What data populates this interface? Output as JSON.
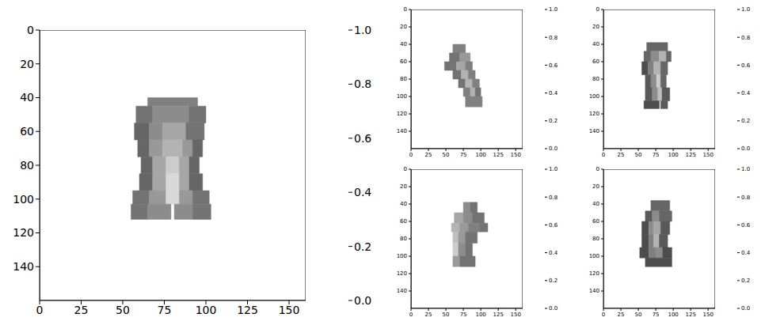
{
  "chart_data": [
    {
      "type": "heatmap",
      "xlim": [
        0,
        160
      ],
      "ylim": [
        0,
        160
      ],
      "xticks": [
        0,
        25,
        50,
        75,
        100,
        125,
        150
      ],
      "yticks": [
        0,
        20,
        40,
        60,
        80,
        100,
        120,
        140
      ],
      "colorbar_range": [
        0,
        1
      ],
      "colorbar_ticks": [
        {
          "value": 0,
          "label": "0.0"
        },
        0.2,
        0.4,
        0.6,
        0.8,
        {
          "value": 1,
          "label": "1.0"
        }
      ],
      "cells": [
        [
          65,
          95,
          40,
          45,
          0.5
        ],
        [
          58,
          68,
          45,
          55,
          0.55
        ],
        [
          68,
          90,
          45,
          55,
          0.45
        ],
        [
          90,
          100,
          45,
          55,
          0.55
        ],
        [
          57,
          66,
          55,
          65,
          0.6
        ],
        [
          66,
          74,
          55,
          65,
          0.45
        ],
        [
          74,
          88,
          55,
          65,
          0.35
        ],
        [
          88,
          99,
          55,
          65,
          0.55
        ],
        [
          59,
          66,
          65,
          75,
          0.6
        ],
        [
          66,
          74,
          65,
          75,
          0.4
        ],
        [
          74,
          86,
          65,
          75,
          0.3
        ],
        [
          86,
          92,
          65,
          75,
          0.4
        ],
        [
          92,
          98,
          65,
          75,
          0.6
        ],
        [
          61,
          68,
          75,
          85,
          0.6
        ],
        [
          68,
          76,
          75,
          85,
          0.35
        ],
        [
          76,
          84,
          75,
          85,
          0.2
        ],
        [
          84,
          90,
          75,
          85,
          0.35
        ],
        [
          90,
          96,
          75,
          85,
          0.6
        ],
        [
          60,
          68,
          85,
          95,
          0.6
        ],
        [
          68,
          76,
          85,
          95,
          0.35
        ],
        [
          76,
          84,
          85,
          95,
          0.15
        ],
        [
          84,
          90,
          85,
          95,
          0.35
        ],
        [
          90,
          98,
          85,
          95,
          0.6
        ],
        [
          56,
          66,
          95,
          103,
          0.55
        ],
        [
          66,
          76,
          95,
          103,
          0.4
        ],
        [
          76,
          84,
          95,
          103,
          0.15
        ],
        [
          84,
          92,
          95,
          103,
          0.4
        ],
        [
          92,
          102,
          95,
          103,
          0.55
        ],
        [
          55,
          65,
          103,
          112,
          0.55
        ],
        [
          65,
          79,
          103,
          112,
          0.45
        ],
        [
          81,
          92,
          103,
          112,
          0.45
        ],
        [
          92,
          103,
          103,
          112,
          0.55
        ]
      ]
    },
    {
      "type": "heatmap",
      "xlim": [
        0,
        160
      ],
      "ylim": [
        0,
        160
      ],
      "xticks": [
        0,
        25,
        50,
        75,
        100,
        125,
        150
      ],
      "yticks": [
        0,
        20,
        40,
        60,
        80,
        100,
        120,
        140
      ],
      "colorbar_range": [
        0,
        1
      ],
      "colorbar_ticks": [
        {
          "value": 0,
          "label": "0.0"
        },
        0.2,
        0.4,
        0.6,
        0.8,
        {
          "value": 1,
          "label": "1.0"
        }
      ],
      "cells": [
        [
          60,
          78,
          40,
          50,
          0.5
        ],
        [
          55,
          70,
          50,
          60,
          0.55
        ],
        [
          70,
          85,
          50,
          60,
          0.4
        ],
        [
          48,
          65,
          60,
          70,
          0.55
        ],
        [
          65,
          78,
          60,
          70,
          0.35
        ],
        [
          78,
          88,
          60,
          70,
          0.5
        ],
        [
          60,
          72,
          70,
          80,
          0.55
        ],
        [
          72,
          82,
          70,
          80,
          0.3
        ],
        [
          82,
          92,
          70,
          80,
          0.5
        ],
        [
          68,
          78,
          80,
          90,
          0.55
        ],
        [
          78,
          88,
          80,
          90,
          0.3
        ],
        [
          88,
          98,
          80,
          90,
          0.5
        ],
        [
          75,
          85,
          90,
          100,
          0.5
        ],
        [
          85,
          92,
          90,
          100,
          0.3
        ],
        [
          92,
          100,
          90,
          100,
          0.55
        ],
        [
          78,
          102,
          100,
          112,
          0.5
        ]
      ]
    },
    {
      "type": "heatmap",
      "xlim": [
        0,
        160
      ],
      "ylim": [
        0,
        160
      ],
      "xticks": [
        0,
        25,
        50,
        75,
        100,
        125,
        150
      ],
      "yticks": [
        0,
        20,
        40,
        60,
        80,
        100,
        120,
        140
      ],
      "colorbar_range": [
        0,
        1
      ],
      "colorbar_ticks": [
        {
          "value": 0,
          "label": "0.0"
        },
        0.2,
        0.4,
        0.6,
        0.8,
        {
          "value": 1,
          "label": "1.0"
        }
      ],
      "cells": [
        [
          62,
          92,
          38,
          48,
          0.6
        ],
        [
          58,
          68,
          48,
          60,
          0.6
        ],
        [
          68,
          80,
          48,
          60,
          0.45
        ],
        [
          80,
          90,
          48,
          60,
          0.3
        ],
        [
          90,
          97,
          48,
          60,
          0.6
        ],
        [
          55,
          64,
          60,
          75,
          0.7
        ],
        [
          64,
          72,
          60,
          75,
          0.5
        ],
        [
          72,
          82,
          60,
          75,
          0.3
        ],
        [
          82,
          92,
          60,
          75,
          0.6
        ],
        [
          60,
          68,
          75,
          90,
          0.65
        ],
        [
          68,
          76,
          75,
          90,
          0.45
        ],
        [
          76,
          82,
          75,
          90,
          0.2
        ],
        [
          82,
          90,
          75,
          90,
          0.6
        ],
        [
          60,
          70,
          90,
          105,
          0.65
        ],
        [
          70,
          78,
          90,
          105,
          0.45
        ],
        [
          78,
          84,
          90,
          105,
          0.25
        ],
        [
          84,
          95,
          90,
          105,
          0.65
        ],
        [
          58,
          80,
          105,
          114,
          0.7
        ],
        [
          82,
          92,
          105,
          114,
          0.65
        ]
      ]
    },
    {
      "type": "heatmap",
      "xlim": [
        0,
        160
      ],
      "ylim": [
        0,
        160
      ],
      "xticks": [
        0,
        25,
        50,
        75,
        100,
        125,
        150
      ],
      "yticks": [
        0,
        20,
        40,
        60,
        80,
        100,
        120,
        140
      ],
      "colorbar_range": [
        0,
        1
      ],
      "colorbar_ticks": [
        {
          "value": 0,
          "label": "0.0"
        },
        0.2,
        0.4,
        0.6,
        0.8,
        {
          "value": 1,
          "label": "1.0"
        }
      ],
      "cells": [
        [
          75,
          85,
          38,
          50,
          0.45
        ],
        [
          85,
          95,
          38,
          50,
          0.55
        ],
        [
          62,
          75,
          50,
          62,
          0.35
        ],
        [
          75,
          88,
          50,
          62,
          0.45
        ],
        [
          88,
          105,
          50,
          62,
          0.55
        ],
        [
          58,
          70,
          62,
          72,
          0.3
        ],
        [
          70,
          82,
          62,
          72,
          0.4
        ],
        [
          82,
          98,
          62,
          72,
          0.5
        ],
        [
          98,
          110,
          62,
          72,
          0.55
        ],
        [
          60,
          68,
          72,
          85,
          0.25
        ],
        [
          68,
          78,
          72,
          85,
          0.4
        ],
        [
          78,
          95,
          72,
          85,
          0.55
        ],
        [
          60,
          68,
          85,
          100,
          0.2
        ],
        [
          68,
          78,
          85,
          100,
          0.45
        ],
        [
          78,
          88,
          85,
          100,
          0.55
        ],
        [
          60,
          70,
          100,
          112,
          0.4
        ],
        [
          70,
          92,
          100,
          112,
          0.55
        ]
      ]
    },
    {
      "type": "heatmap",
      "xlim": [
        0,
        160
      ],
      "ylim": [
        0,
        160
      ],
      "xticks": [
        0,
        25,
        50,
        75,
        100,
        125,
        150
      ],
      "yticks": [
        0,
        20,
        40,
        60,
        80,
        100,
        120,
        140
      ],
      "colorbar_range": [
        0,
        1
      ],
      "colorbar_ticks": [
        {
          "value": 0,
          "label": "0.0"
        },
        0.2,
        0.4,
        0.6,
        0.8,
        {
          "value": 1,
          "label": "1.0"
        }
      ],
      "cells": [
        [
          68,
          95,
          36,
          48,
          0.6
        ],
        [
          60,
          70,
          48,
          60,
          0.65
        ],
        [
          70,
          80,
          48,
          60,
          0.45
        ],
        [
          80,
          98,
          48,
          60,
          0.6
        ],
        [
          55,
          65,
          60,
          75,
          0.7
        ],
        [
          65,
          72,
          60,
          75,
          0.45
        ],
        [
          72,
          82,
          60,
          75,
          0.35
        ],
        [
          82,
          95,
          60,
          75,
          0.65
        ],
        [
          55,
          65,
          75,
          90,
          0.7
        ],
        [
          65,
          72,
          75,
          90,
          0.5
        ],
        [
          72,
          80,
          75,
          90,
          0.3
        ],
        [
          80,
          92,
          75,
          90,
          0.65
        ],
        [
          52,
          65,
          90,
          102,
          0.7
        ],
        [
          65,
          75,
          90,
          102,
          0.5
        ],
        [
          75,
          85,
          90,
          102,
          0.45
        ],
        [
          85,
          98,
          90,
          102,
          0.7
        ],
        [
          60,
          98,
          102,
          112,
          0.7
        ]
      ]
    }
  ]
}
